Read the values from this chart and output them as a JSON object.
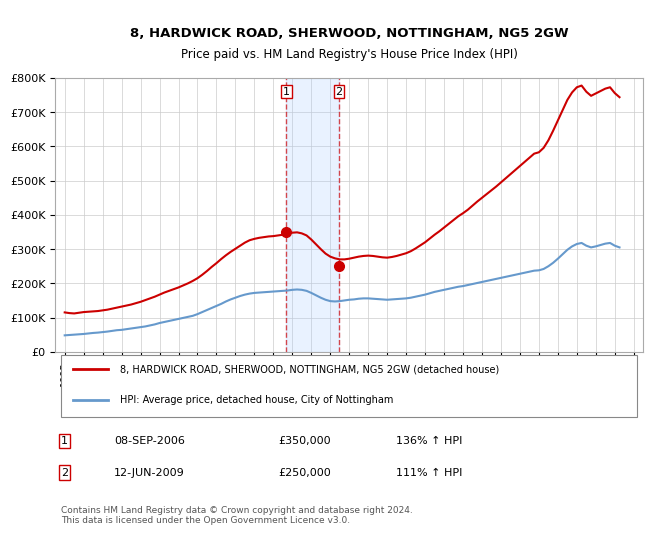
{
  "title_line1": "8, HARDWICK ROAD, SHERWOOD, NOTTINGHAM, NG5 2GW",
  "title_line2": "Price paid vs. HM Land Registry's House Price Index (HPI)",
  "property_color": "#cc0000",
  "hpi_color": "#6699cc",
  "background_color": "#ffffff",
  "grid_color": "#cccccc",
  "legend_property": "8, HARDWICK ROAD, SHERWOOD, NOTTINGHAM, NG5 2GW (detached house)",
  "legend_hpi": "HPI: Average price, detached house, City of Nottingham",
  "sale1_date": "08-SEP-2006",
  "sale1_price": 350000,
  "sale1_hpi": "136% ↑ HPI",
  "sale2_date": "12-JUN-2009",
  "sale2_price": 250000,
  "sale2_hpi": "111% ↑ HPI",
  "footnote": "Contains HM Land Registry data © Crown copyright and database right 2024.\nThis data is licensed under the Open Government Licence v3.0.",
  "ylim": [
    0,
    800000
  ],
  "yticks": [
    0,
    100000,
    200000,
    300000,
    400000,
    500000,
    600000,
    700000,
    800000
  ],
  "xlim_start": 1994.5,
  "xlim_end": 2025.5,
  "sale1_x": 2006.69,
  "sale2_x": 2009.45,
  "hpi_years": [
    1995,
    1995.25,
    1995.5,
    1995.75,
    1996,
    1996.25,
    1996.5,
    1996.75,
    1997,
    1997.25,
    1997.5,
    1997.75,
    1998,
    1998.25,
    1998.5,
    1998.75,
    1999,
    1999.25,
    1999.5,
    1999.75,
    2000,
    2000.25,
    2000.5,
    2000.75,
    2001,
    2001.25,
    2001.5,
    2001.75,
    2002,
    2002.25,
    2002.5,
    2002.75,
    2003,
    2003.25,
    2003.5,
    2003.75,
    2004,
    2004.25,
    2004.5,
    2004.75,
    2005,
    2005.25,
    2005.5,
    2005.75,
    2006,
    2006.25,
    2006.5,
    2006.75,
    2007,
    2007.25,
    2007.5,
    2007.75,
    2008,
    2008.25,
    2008.5,
    2008.75,
    2009,
    2009.25,
    2009.5,
    2009.75,
    2010,
    2010.25,
    2010.5,
    2010.75,
    2011,
    2011.25,
    2011.5,
    2011.75,
    2012,
    2012.25,
    2012.5,
    2012.75,
    2013,
    2013.25,
    2013.5,
    2013.75,
    2014,
    2014.25,
    2014.5,
    2014.75,
    2015,
    2015.25,
    2015.5,
    2015.75,
    2016,
    2016.25,
    2016.5,
    2016.75,
    2017,
    2017.25,
    2017.5,
    2017.75,
    2018,
    2018.25,
    2018.5,
    2018.75,
    2019,
    2019.25,
    2019.5,
    2019.75,
    2020,
    2020.25,
    2020.5,
    2020.75,
    2021,
    2021.25,
    2021.5,
    2021.75,
    2022,
    2022.25,
    2022.5,
    2022.75,
    2023,
    2023.25,
    2023.5,
    2023.75,
    2024,
    2024.25
  ],
  "hpi_values": [
    48000,
    49000,
    50000,
    51000,
    52000,
    53500,
    55000,
    56000,
    57500,
    59000,
    61000,
    63000,
    64000,
    66000,
    68000,
    70000,
    72000,
    74000,
    77000,
    80000,
    84000,
    87000,
    90000,
    93000,
    96000,
    99000,
    102000,
    105000,
    110000,
    116000,
    122000,
    128000,
    134000,
    140000,
    147000,
    153000,
    158000,
    163000,
    167000,
    170000,
    172000,
    173000,
    174000,
    175000,
    176000,
    177000,
    178000,
    179000,
    181000,
    182000,
    181000,
    178000,
    172000,
    165000,
    158000,
    152000,
    148000,
    147000,
    148000,
    150000,
    152000,
    153000,
    155000,
    156000,
    156000,
    155000,
    154000,
    153000,
    152000,
    153000,
    154000,
    155000,
    156000,
    158000,
    161000,
    164000,
    167000,
    171000,
    175000,
    178000,
    181000,
    184000,
    187000,
    190000,
    192000,
    195000,
    198000,
    201000,
    204000,
    207000,
    210000,
    213000,
    216000,
    219000,
    222000,
    225000,
    228000,
    231000,
    234000,
    237000,
    238000,
    242000,
    250000,
    260000,
    272000,
    285000,
    298000,
    308000,
    315000,
    318000,
    310000,
    305000,
    308000,
    312000,
    316000,
    318000,
    310000,
    305000
  ],
  "property_years": [
    1995,
    1995.25,
    1995.5,
    1995.75,
    1996,
    1996.25,
    1996.5,
    1996.75,
    1997,
    1997.25,
    1997.5,
    1997.75,
    1998,
    1998.25,
    1998.5,
    1998.75,
    1999,
    1999.25,
    1999.5,
    1999.75,
    2000,
    2000.25,
    2000.5,
    2000.75,
    2001,
    2001.25,
    2001.5,
    2001.75,
    2002,
    2002.25,
    2002.5,
    2002.75,
    2003,
    2003.25,
    2003.5,
    2003.75,
    2004,
    2004.25,
    2004.5,
    2004.75,
    2005,
    2005.25,
    2005.5,
    2005.75,
    2006,
    2006.25,
    2006.5,
    2006.75,
    2007,
    2007.25,
    2007.5,
    2007.75,
    2008,
    2008.25,
    2008.5,
    2008.75,
    2009,
    2009.25,
    2009.5,
    2009.75,
    2010,
    2010.25,
    2010.5,
    2010.75,
    2011,
    2011.25,
    2011.5,
    2011.75,
    2012,
    2012.25,
    2012.5,
    2012.75,
    2013,
    2013.25,
    2013.5,
    2013.75,
    2014,
    2014.25,
    2014.5,
    2014.75,
    2015,
    2015.25,
    2015.5,
    2015.75,
    2016,
    2016.25,
    2016.5,
    2016.75,
    2017,
    2017.25,
    2017.5,
    2017.75,
    2018,
    2018.25,
    2018.5,
    2018.75,
    2019,
    2019.25,
    2019.5,
    2019.75,
    2020,
    2020.25,
    2020.5,
    2020.75,
    2021,
    2021.25,
    2021.5,
    2021.75,
    2022,
    2022.25,
    2022.5,
    2022.75,
    2023,
    2023.25,
    2023.5,
    2023.75,
    2024,
    2024.25
  ],
  "property_values": [
    115000,
    113000,
    112000,
    114000,
    116000,
    117000,
    118000,
    119000,
    121000,
    123000,
    126000,
    129000,
    132000,
    135000,
    138000,
    142000,
    146000,
    151000,
    156000,
    161000,
    167000,
    173000,
    178000,
    183000,
    188000,
    194000,
    200000,
    207000,
    215000,
    225000,
    236000,
    248000,
    259000,
    271000,
    282000,
    292000,
    301000,
    310000,
    319000,
    326000,
    330000,
    333000,
    335000,
    337000,
    338000,
    340000,
    342000,
    345000,
    348000,
    349000,
    346000,
    340000,
    328000,
    314000,
    300000,
    287000,
    278000,
    273000,
    270000,
    270000,
    272000,
    275000,
    278000,
    280000,
    281000,
    280000,
    278000,
    276000,
    275000,
    277000,
    280000,
    284000,
    288000,
    294000,
    302000,
    311000,
    320000,
    331000,
    342000,
    352000,
    363000,
    374000,
    385000,
    396000,
    405000,
    415000,
    427000,
    439000,
    450000,
    461000,
    472000,
    483000,
    495000,
    507000,
    519000,
    531000,
    543000,
    555000,
    567000,
    579000,
    583000,
    596000,
    618000,
    646000,
    676000,
    706000,
    736000,
    758000,
    773000,
    778000,
    760000,
    748000,
    755000,
    762000,
    769000,
    773000,
    756000,
    744000
  ],
  "xtick_years": [
    1995,
    1996,
    1997,
    1998,
    1999,
    2000,
    2001,
    2002,
    2003,
    2004,
    2005,
    2006,
    2007,
    2008,
    2009,
    2010,
    2011,
    2012,
    2013,
    2014,
    2015,
    2016,
    2017,
    2018,
    2019,
    2020,
    2021,
    2022,
    2023,
    2024,
    2025
  ]
}
